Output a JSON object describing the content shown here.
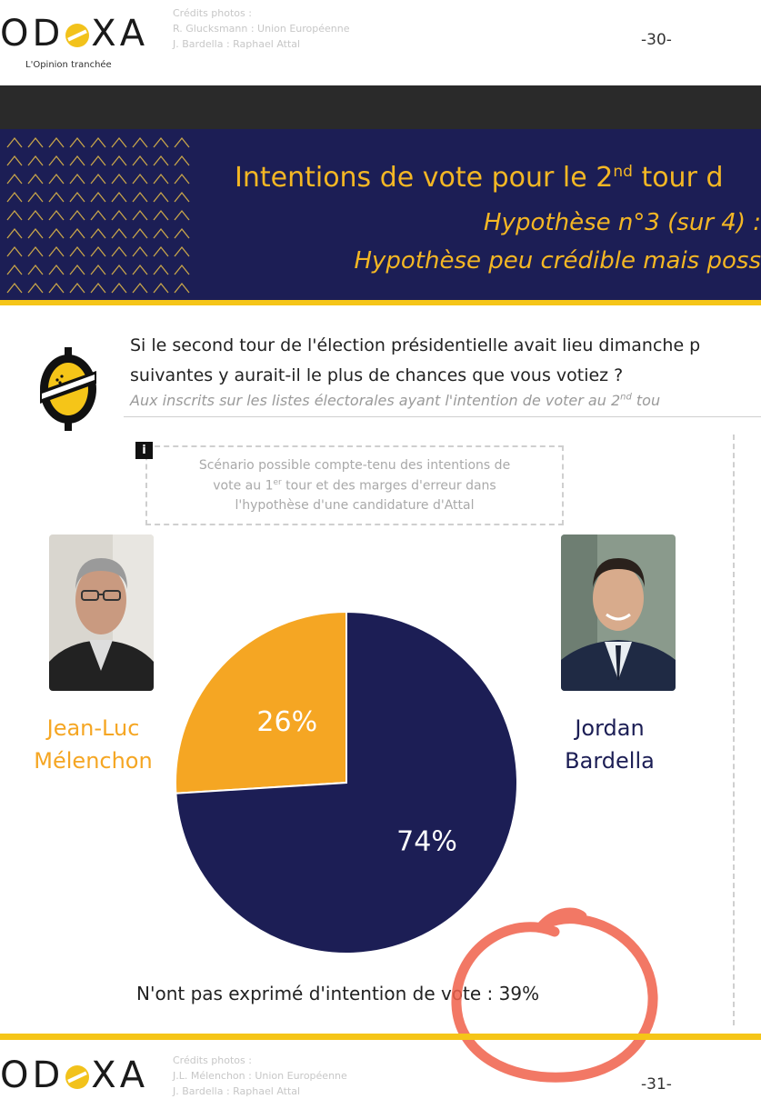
{
  "header": {
    "logo_text_left": "OD",
    "logo_text_right": "XA",
    "tagline": "L'Opinion tranchée",
    "credits": [
      "Crédits photos :",
      "R. Glucksmann : Union Européenne",
      "J. Bardella : Raphael Attal"
    ],
    "page_number": "-30-"
  },
  "banner": {
    "title": "Intentions de vote pour le 2nd tour d",
    "title_main": "Intentions de vote pour le 2",
    "title_sup": "nd",
    "title_tail": " tour d",
    "subtitle_1": "Hypothèse n°3 (sur 4) :",
    "subtitle_2": "Hypothèse peu crédible mais poss"
  },
  "question": {
    "line_1": "Si le second tour de l'élection présidentielle avait lieu dimanche p",
    "line_2": "suivantes y aurait-il le plus de chances que vous votiez ?",
    "base_main": "Aux inscrits sur les listes électorales ayant l'intention de voter au 2",
    "base_sup": "nd",
    "base_tail": " tou"
  },
  "scenario": {
    "info_label": "i",
    "line_1": "Scénario possible compte-tenu des intentions de",
    "line_2_a": "vote au 1",
    "line_2_sup": "er",
    "line_2_b": " tour et des marges d'erreur dans",
    "line_3": "l'hypothèse d'une candidature d'Attal"
  },
  "candidates": {
    "left": {
      "first": "Jean-Luc",
      "last": "Mélenchon",
      "color": "#f5a623"
    },
    "right": {
      "first": "Jordan",
      "last": "Bardella",
      "color": "#1c1e55"
    }
  },
  "chart_data": {
    "type": "pie",
    "slices": [
      {
        "label": "Jean-Luc Mélenchon",
        "value": 26,
        "display": "26%",
        "color": "#f5a623"
      },
      {
        "label": "Jordan Bardella",
        "value": 74,
        "display": "74%",
        "color": "#1c1e55"
      }
    ]
  },
  "footnote": "N'ont pas exprimé d'intention de vote : 39%",
  "annotation": {
    "color": "#f0604a"
  },
  "footer": {
    "logo_text_left": "OD",
    "logo_text_right": "XA",
    "credits": [
      "Crédits photos :",
      "J.L. Mélenchon : Union Européenne",
      "J. Bardella : Raphael Attal"
    ],
    "page_number": "-31-"
  }
}
